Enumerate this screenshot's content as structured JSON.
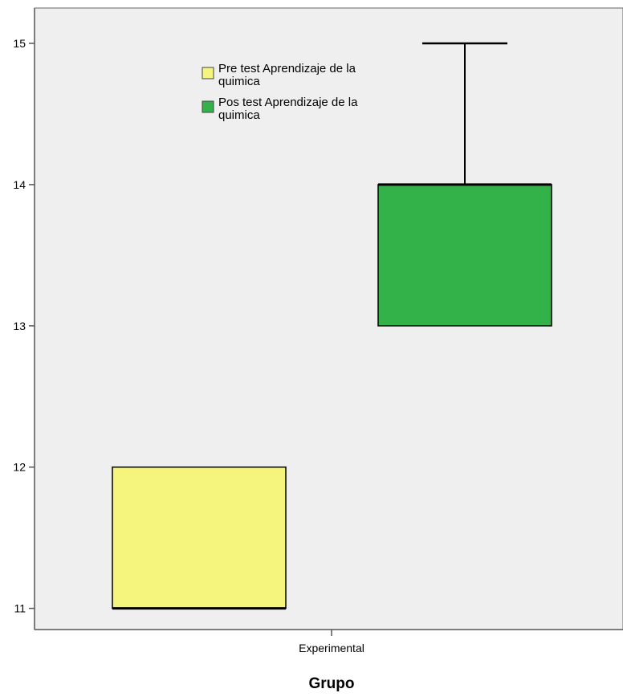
{
  "chart_data": {
    "type": "boxplot",
    "title": "",
    "xlabel": "Grupo",
    "ylabel": "",
    "categories": [
      "Experimental"
    ],
    "ylim": [
      10.85,
      15.25
    ],
    "y_ticks": [
      "11",
      "12",
      "13",
      "14",
      "15"
    ],
    "grid": false,
    "legend_position": "top-left",
    "series": [
      {
        "name_line1": "Pre test Aprendizaje de la",
        "name_line2": "quimica",
        "color": "#F5F57E",
        "stats": {
          "min": 11,
          "q1": 11,
          "median": 11,
          "q3": 12,
          "max": 12
        }
      },
      {
        "name_line1": "Pos test Aprendizaje de la",
        "name_line2": "quimica",
        "color": "#33B24A",
        "stats": {
          "min": 13,
          "q1": 13,
          "median": 14,
          "q3": 14,
          "max": 15
        }
      }
    ]
  },
  "colors": {
    "plot_background": "#EFEFEF",
    "axis": "#555555"
  }
}
